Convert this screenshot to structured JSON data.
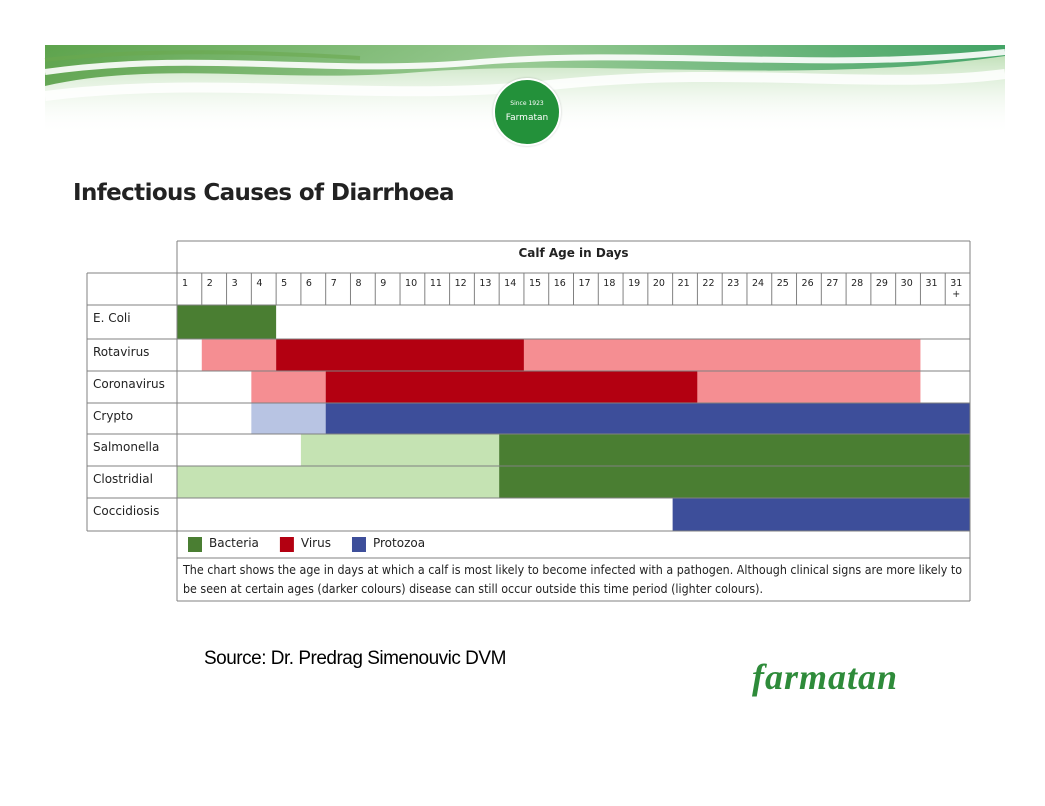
{
  "header": {
    "logo_since": "Since 1923",
    "logo_name": "Farmatan"
  },
  "colors": {
    "bacteria_dark": "#4a7e32",
    "bacteria_light": "#c5e3b3",
    "virus_dark": "#b30011",
    "virus_light": "#f58e92",
    "protozoa_dark": "#3d4e9a",
    "protozoa_light": "#b8c4e3",
    "brand_green": "#2e8b3a"
  },
  "chart_data": {
    "type": "table",
    "title": "Infectious Causes of Diarrhoea",
    "header_label": "Calf Age in Days",
    "day_labels": [
      "1",
      "2",
      "3",
      "4",
      "5",
      "6",
      "7",
      "8",
      "9",
      "10",
      "11",
      "12",
      "13",
      "14",
      "15",
      "16",
      "17",
      "18",
      "19",
      "20",
      "21",
      "22",
      "23",
      "24",
      "25",
      "26",
      "27",
      "28",
      "29",
      "30",
      "31",
      "31\n+"
    ],
    "rows": [
      {
        "name": "E. Coli",
        "category": "Bacteria",
        "segments": [
          {
            "from_day": 1,
            "to_day": 4,
            "level": "dark"
          }
        ]
      },
      {
        "name": "Rotavirus",
        "category": "Virus",
        "segments": [
          {
            "from_day": 2,
            "to_day": 4,
            "level": "light"
          },
          {
            "from_day": 5,
            "to_day": 14,
            "level": "dark"
          },
          {
            "from_day": 15,
            "to_day": 30,
            "level": "light"
          }
        ]
      },
      {
        "name": "Coronavirus",
        "category": "Virus",
        "segments": [
          {
            "from_day": 4,
            "to_day": 6,
            "level": "light"
          },
          {
            "from_day": 7,
            "to_day": 21,
            "level": "dark"
          },
          {
            "from_day": 22,
            "to_day": 30,
            "level": "light"
          }
        ]
      },
      {
        "name": "Crypto",
        "category": "Protozoa",
        "segments": [
          {
            "from_day": 4,
            "to_day": 6,
            "level": "light"
          },
          {
            "from_day": 7,
            "to_day": 32,
            "level": "dark"
          }
        ]
      },
      {
        "name": "Salmonella",
        "category": "Bacteria",
        "segments": [
          {
            "from_day": 6,
            "to_day": 13,
            "level": "light"
          },
          {
            "from_day": 14,
            "to_day": 32,
            "level": "dark"
          }
        ]
      },
      {
        "name": "Clostridial",
        "category": "Bacteria",
        "segments": [
          {
            "from_day": 1,
            "to_day": 13,
            "level": "light"
          },
          {
            "from_day": 14,
            "to_day": 32,
            "level": "dark"
          }
        ]
      },
      {
        "name": "Coccidiosis",
        "category": "Protozoa",
        "segments": [
          {
            "from_day": 21,
            "to_day": 32,
            "level": "dark"
          }
        ]
      }
    ],
    "legend": [
      {
        "label": "Bacteria",
        "color": "#4a7e32"
      },
      {
        "label": "Virus",
        "color": "#b30011"
      },
      {
        "label": "Protozoa",
        "color": "#3d4e9a"
      }
    ],
    "note_lines": [
      "The chart shows the age in days at which a calf is most likely to become infected with a pathogen. Although clinical signs are more likely to",
      "be seen at certain ages (darker colours) disease can still occur outside this time period (lighter colours)."
    ]
  },
  "footer": {
    "source": "Source: Dr. Predrag  Simenouvic DVM",
    "brand": "farmatan"
  }
}
